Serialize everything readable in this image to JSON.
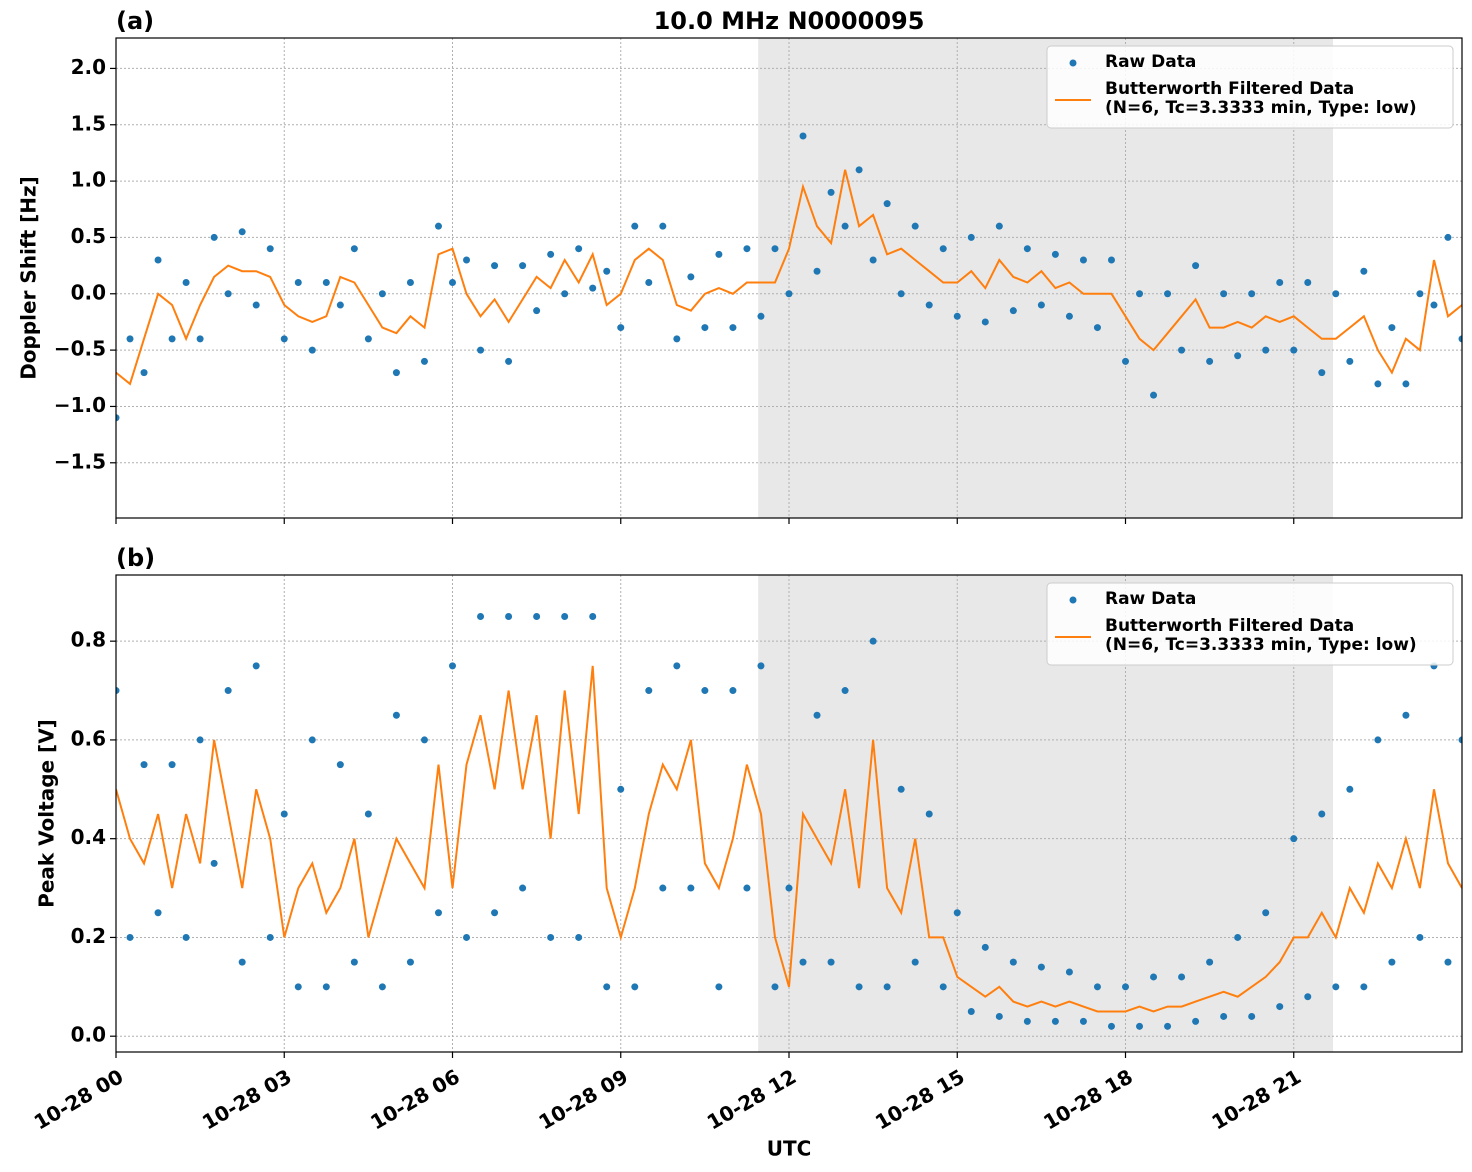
{
  "chart_data": [
    {
      "type": "line",
      "title": "10.0 MHz N0000095",
      "panel_label": "(a)",
      "y_label": "Doppler Shift [Hz]",
      "shaded_region": [
        11.45,
        21.7
      ],
      "shade_color": "#e8e8e8",
      "grid": true,
      "legend": "upper right",
      "show_xtick_labels": false,
      "xlim": [
        0,
        24
      ],
      "xticks": [
        0,
        3,
        6,
        9,
        12,
        15,
        18,
        21
      ],
      "ylim": [
        -1.99,
        2.27
      ],
      "yticks": [
        {
          "value": -1.5,
          "label": "−1.5"
        },
        {
          "value": -1.0,
          "label": "−1.0"
        },
        {
          "value": -0.5,
          "label": "−0.5"
        },
        {
          "value": 0,
          "label": "0.0"
        },
        0.5,
        {
          "value": 1.0,
          "label": "1.0"
        },
        1.5,
        {
          "value": 2.0,
          "label": "2.0"
        }
      ],
      "x": [
        0,
        0.25,
        0.5,
        0.75,
        1,
        1.25,
        1.5,
        1.75,
        2,
        2.25,
        2.5,
        2.75,
        3,
        3.25,
        3.5,
        3.75,
        4,
        4.25,
        4.5,
        4.75,
        5,
        5.25,
        5.5,
        5.75,
        6,
        6.25,
        6.5,
        6.75,
        7,
        7.25,
        7.5,
        7.75,
        8,
        8.25,
        8.5,
        8.75,
        9,
        9.25,
        9.5,
        9.75,
        10,
        10.25,
        10.5,
        10.75,
        11,
        11.25,
        11.5,
        11.75,
        12,
        12.25,
        12.5,
        12.75,
        13,
        13.25,
        13.5,
        13.75,
        14,
        14.25,
        14.5,
        14.75,
        15,
        15.25,
        15.5,
        15.75,
        16,
        16.25,
        16.5,
        16.75,
        17,
        17.25,
        17.5,
        17.75,
        18,
        18.25,
        18.5,
        18.75,
        19,
        19.25,
        19.5,
        19.75,
        20,
        20.25,
        20.5,
        20.75,
        21,
        21.25,
        21.5,
        21.75,
        22,
        22.25,
        22.5,
        22.75,
        23,
        23.25,
        23.5,
        23.75,
        24
      ],
      "series": [
        {
          "name": "Raw Data",
          "style": "markers",
          "color": "#1f77b4",
          "values": [
            -1.1,
            -0.4,
            -0.7,
            0.3,
            -0.4,
            0.1,
            -0.4,
            0.5,
            0.0,
            0.55,
            -0.1,
            0.4,
            -0.4,
            0.1,
            -0.5,
            0.1,
            -0.1,
            0.4,
            -0.4,
            0.0,
            -0.7,
            0.1,
            -0.6,
            0.6,
            0.1,
            0.3,
            -0.5,
            0.25,
            -0.6,
            0.25,
            -0.15,
            0.35,
            0.0,
            0.4,
            0.05,
            0.2,
            -0.3,
            0.6,
            0.1,
            0.6,
            -0.4,
            0.15,
            -0.3,
            0.35,
            -0.3,
            0.4,
            -0.2,
            0.4,
            0.0,
            1.4,
            0.2,
            0.9,
            0.6,
            1.1,
            0.3,
            0.8,
            0.0,
            0.6,
            -0.1,
            0.4,
            -0.2,
            0.5,
            -0.25,
            0.6,
            -0.15,
            0.4,
            -0.1,
            0.35,
            -0.2,
            0.3,
            -0.3,
            0.3,
            -0.6,
            0.0,
            -0.9,
            0.0,
            -0.5,
            0.25,
            -0.6,
            0.0,
            -0.55,
            0.0,
            -0.5,
            0.1,
            -0.5,
            0.1,
            -0.7,
            0.0,
            -0.6,
            0.2,
            -0.8,
            -0.3,
            -0.8,
            0.0,
            -0.1,
            0.5,
            -0.4
          ]
        },
        {
          "name": "Butterworth Filtered Data\n(N=6, Tc=3.3333 min, Type: low)",
          "style": "line",
          "color": "#ff7f0e",
          "values": [
            -0.7,
            -0.8,
            -0.4,
            0.0,
            -0.1,
            -0.4,
            -0.1,
            0.15,
            0.25,
            0.2,
            0.2,
            0.15,
            -0.1,
            -0.2,
            -0.25,
            -0.2,
            0.15,
            0.1,
            -0.1,
            -0.3,
            -0.35,
            -0.2,
            -0.3,
            0.35,
            0.4,
            0.0,
            -0.2,
            -0.05,
            -0.25,
            -0.05,
            0.15,
            0.05,
            0.3,
            0.1,
            0.35,
            -0.1,
            0.0,
            0.3,
            0.4,
            0.3,
            -0.1,
            -0.15,
            0.0,
            0.05,
            0.0,
            0.1,
            0.1,
            0.1,
            0.4,
            0.95,
            0.6,
            0.45,
            1.1,
            0.6,
            0.7,
            0.35,
            0.4,
            0.3,
            0.2,
            0.1,
            0.1,
            0.2,
            0.05,
            0.3,
            0.15,
            0.1,
            0.2,
            0.05,
            0.1,
            0.0,
            0.0,
            0.0,
            -0.2,
            -0.4,
            -0.5,
            -0.35,
            -0.2,
            -0.05,
            -0.3,
            -0.3,
            -0.25,
            -0.3,
            -0.2,
            -0.25,
            -0.2,
            -0.3,
            -0.4,
            -0.4,
            -0.3,
            -0.2,
            -0.5,
            -0.7,
            -0.4,
            -0.5,
            0.3,
            -0.2,
            -0.1
          ]
        }
      ]
    },
    {
      "type": "line",
      "panel_label": "(b)",
      "y_label": "Peak Voltage [V]",
      "x_label": "UTC",
      "shaded_region": [
        11.45,
        21.7
      ],
      "shade_color": "#e8e8e8",
      "grid": true,
      "legend": "upper right",
      "show_xtick_labels": true,
      "xlim": [
        0,
        24
      ],
      "xticks": [
        {
          "value": 0,
          "label": "10-28 00"
        },
        {
          "value": 3,
          "label": "10-28 03"
        },
        {
          "value": 6,
          "label": "10-28 06"
        },
        {
          "value": 9,
          "label": "10-28 09"
        },
        {
          "value": 12,
          "label": "10-28 12"
        },
        {
          "value": 15,
          "label": "10-28 15"
        },
        {
          "value": 18,
          "label": "10-28 18"
        },
        {
          "value": 21,
          "label": "10-28 21"
        }
      ],
      "ylim": [
        -0.032,
        0.934
      ],
      "yticks": [
        {
          "value": 0,
          "label": "0.0"
        },
        0.2,
        0.4,
        0.6,
        0.8
      ],
      "x": [
        0,
        0.25,
        0.5,
        0.75,
        1,
        1.25,
        1.5,
        1.75,
        2,
        2.25,
        2.5,
        2.75,
        3,
        3.25,
        3.5,
        3.75,
        4,
        4.25,
        4.5,
        4.75,
        5,
        5.25,
        5.5,
        5.75,
        6,
        6.25,
        6.5,
        6.75,
        7,
        7.25,
        7.5,
        7.75,
        8,
        8.25,
        8.5,
        8.75,
        9,
        9.25,
        9.5,
        9.75,
        10,
        10.25,
        10.5,
        10.75,
        11,
        11.25,
        11.5,
        11.75,
        12,
        12.25,
        12.5,
        12.75,
        13,
        13.25,
        13.5,
        13.75,
        14,
        14.25,
        14.5,
        14.75,
        15,
        15.25,
        15.5,
        15.75,
        16,
        16.25,
        16.5,
        16.75,
        17,
        17.25,
        17.5,
        17.75,
        18,
        18.25,
        18.5,
        18.75,
        19,
        19.25,
        19.5,
        19.75,
        20,
        20.25,
        20.5,
        20.75,
        21,
        21.25,
        21.5,
        21.75,
        22,
        22.25,
        22.5,
        22.75,
        23,
        23.25,
        23.5,
        23.75,
        24
      ],
      "series": [
        {
          "name": "Raw Data",
          "style": "markers",
          "color": "#1f77b4",
          "values": [
            0.7,
            0.2,
            0.55,
            0.25,
            0.55,
            0.2,
            0.6,
            0.35,
            0.7,
            0.15,
            0.75,
            0.2,
            0.45,
            0.1,
            0.6,
            0.1,
            0.55,
            0.15,
            0.45,
            0.1,
            0.65,
            0.15,
            0.6,
            0.25,
            0.75,
            0.2,
            0.85,
            0.25,
            0.85,
            0.3,
            0.85,
            0.2,
            0.85,
            0.2,
            0.85,
            0.1,
            0.5,
            0.1,
            0.7,
            0.3,
            0.75,
            0.3,
            0.7,
            0.1,
            0.7,
            0.3,
            0.75,
            0.1,
            0.3,
            0.15,
            0.65,
            0.15,
            0.7,
            0.1,
            0.8,
            0.1,
            0.5,
            0.15,
            0.45,
            0.1,
            0.25,
            0.05,
            0.18,
            0.04,
            0.15,
            0.03,
            0.14,
            0.03,
            0.13,
            0.03,
            0.1,
            0.02,
            0.1,
            0.02,
            0.12,
            0.02,
            0.12,
            0.03,
            0.15,
            0.04,
            0.2,
            0.04,
            0.25,
            0.06,
            0.4,
            0.08,
            0.45,
            0.1,
            0.5,
            0.1,
            0.6,
            0.15,
            0.65,
            0.2,
            0.75,
            0.15,
            0.6
          ]
        },
        {
          "name": "Butterworth Filtered Data\n(N=6, Tc=3.3333 min, Type: low)",
          "style": "line",
          "color": "#ff7f0e",
          "values": [
            0.5,
            0.4,
            0.35,
            0.45,
            0.3,
            0.45,
            0.35,
            0.6,
            0.45,
            0.3,
            0.5,
            0.4,
            0.2,
            0.3,
            0.35,
            0.25,
            0.3,
            0.4,
            0.2,
            0.3,
            0.4,
            0.35,
            0.3,
            0.55,
            0.3,
            0.55,
            0.65,
            0.5,
            0.7,
            0.5,
            0.65,
            0.4,
            0.7,
            0.45,
            0.75,
            0.3,
            0.2,
            0.3,
            0.45,
            0.55,
            0.5,
            0.6,
            0.35,
            0.3,
            0.4,
            0.55,
            0.45,
            0.2,
            0.1,
            0.45,
            0.4,
            0.35,
            0.5,
            0.3,
            0.6,
            0.3,
            0.25,
            0.4,
            0.2,
            0.2,
            0.12,
            0.1,
            0.08,
            0.1,
            0.07,
            0.06,
            0.07,
            0.06,
            0.07,
            0.06,
            0.05,
            0.05,
            0.05,
            0.06,
            0.05,
            0.06,
            0.06,
            0.07,
            0.08,
            0.09,
            0.08,
            0.1,
            0.12,
            0.15,
            0.2,
            0.2,
            0.25,
            0.2,
            0.3,
            0.25,
            0.35,
            0.3,
            0.4,
            0.3,
            0.5,
            0.35,
            0.3
          ]
        }
      ]
    }
  ]
}
